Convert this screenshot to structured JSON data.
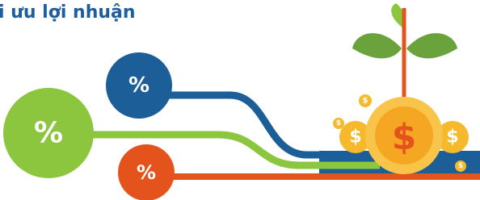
{
  "header": {
    "title": "i ưu lợi nhuận"
  },
  "nodes": [
    {
      "label": "%"
    },
    {
      "label": "%"
    },
    {
      "label": "%"
    }
  ],
  "coins": [
    {
      "label": "$"
    },
    {
      "label": "$"
    },
    {
      "label": "$"
    },
    {
      "label": "$"
    },
    {
      "label": "$"
    },
    {
      "label": "$"
    }
  ]
}
